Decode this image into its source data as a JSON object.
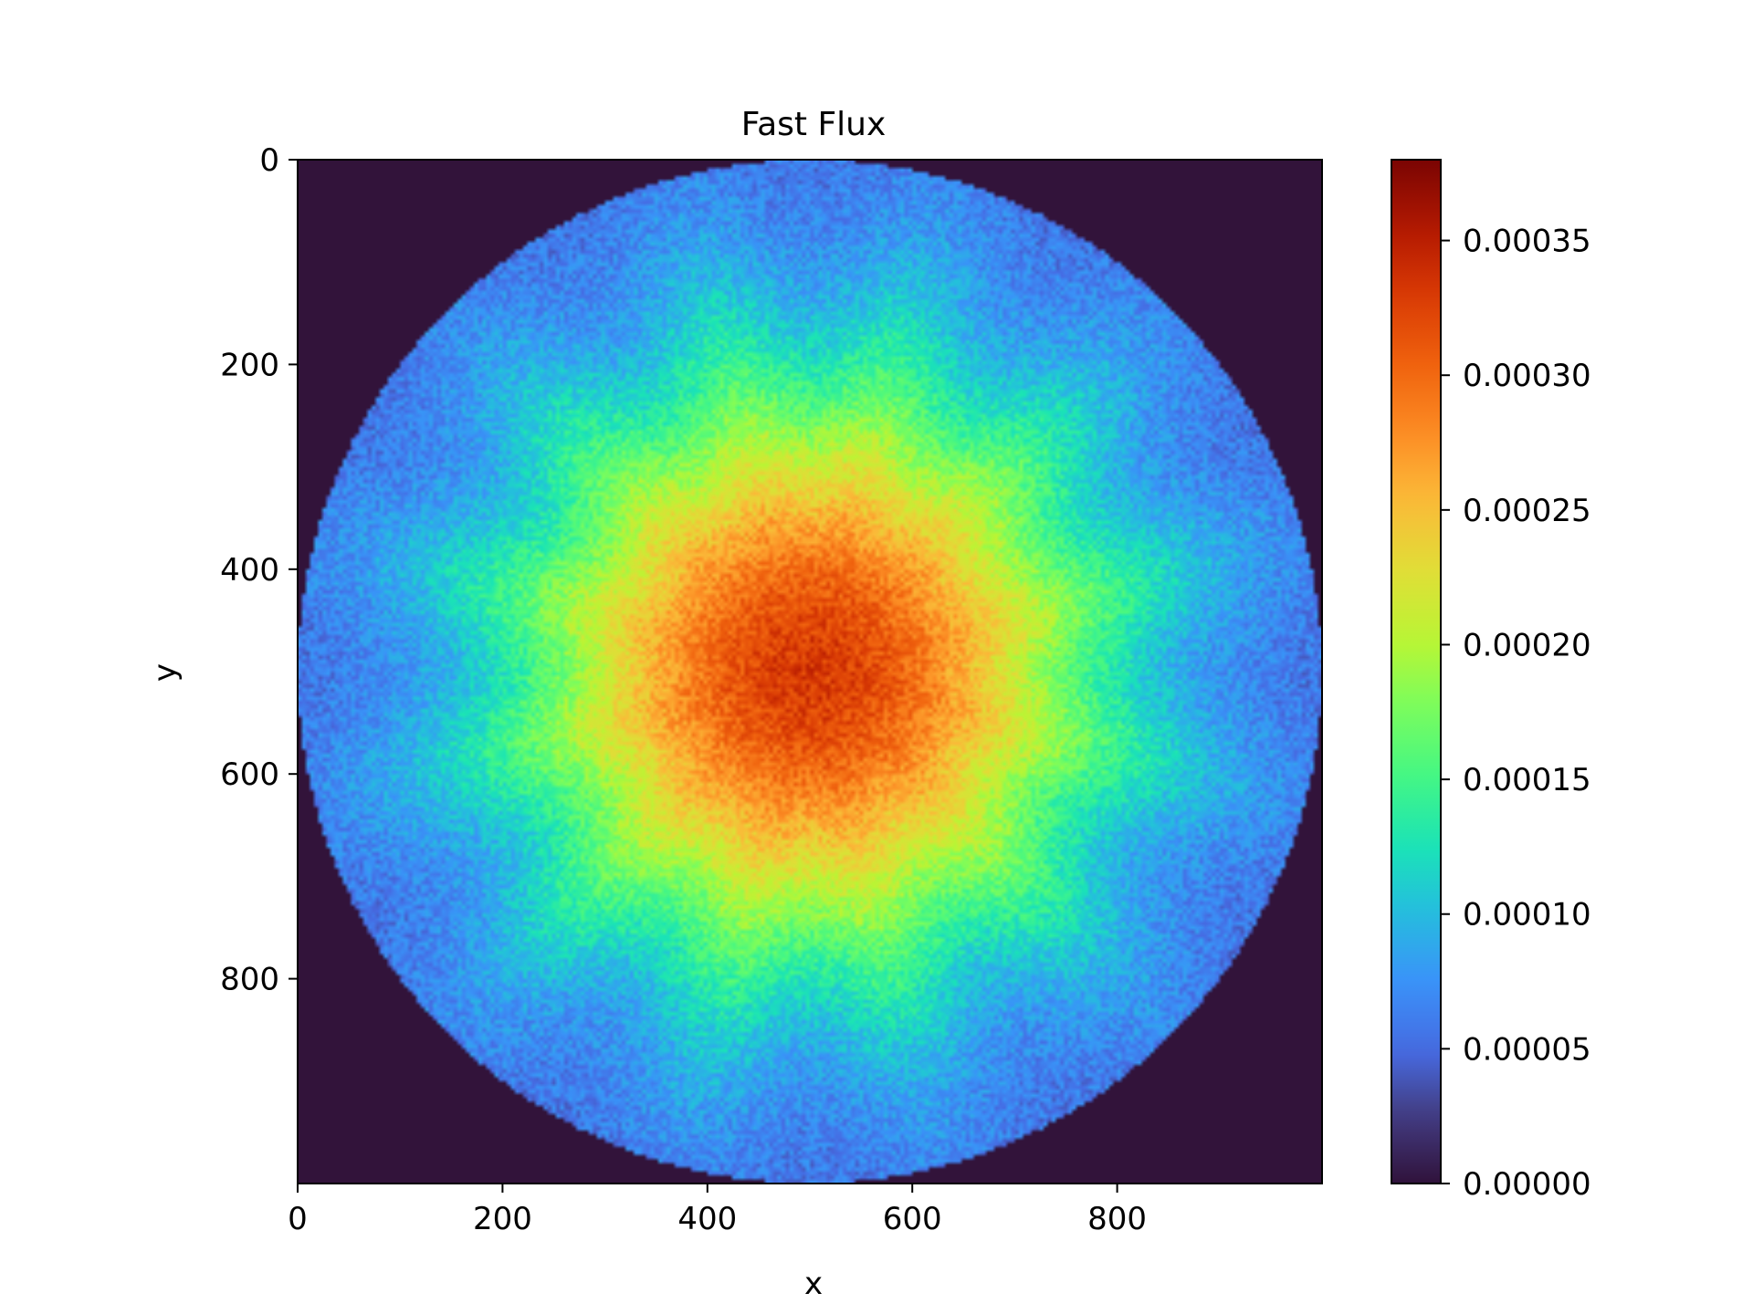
{
  "chart_data": {
    "type": "heatmap",
    "title": "Fast Flux",
    "xlabel": "x",
    "ylabel": "y",
    "xlim": [
      0,
      1000
    ],
    "ylim": [
      1000,
      0
    ],
    "x_ticks": [
      0,
      200,
      400,
      600,
      800
    ],
    "y_ticks": [
      0,
      200,
      400,
      600,
      800
    ],
    "x_tick_labels": [
      "0",
      "200",
      "400",
      "600",
      "800"
    ],
    "y_tick_labels": [
      "0",
      "200",
      "400",
      "600",
      "800"
    ],
    "colormap": "turbo",
    "colorbar": {
      "min": 0.0,
      "max": 0.00038,
      "ticks": [
        0.0,
        5e-05,
        0.0001,
        0.00015,
        0.0002,
        0.00025,
        0.0003,
        0.00035
      ],
      "tick_labels": [
        "0.00000",
        "0.00005",
        "0.00010",
        "0.00015",
        "0.00020",
        "0.00025",
        "0.00030",
        "0.00035"
      ]
    },
    "field": {
      "shape": "circular core",
      "center": [
        500,
        500
      ],
      "radius": 500,
      "center_value": 0.00033,
      "edge_value": 5e-05,
      "outside_value": 0.0,
      "peripheral_notches": 12,
      "background_color": "#32133a"
    },
    "grid": false
  }
}
